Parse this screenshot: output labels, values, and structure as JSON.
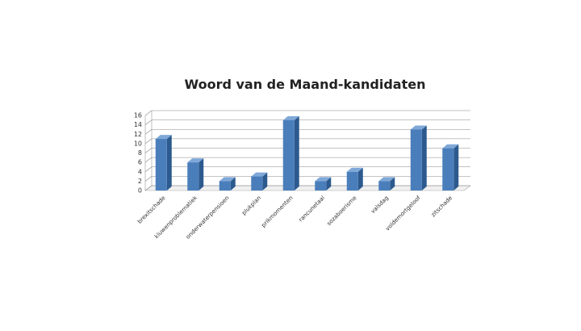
{
  "chart_data": {
    "type": "bar",
    "title": "Woord van de Maand-kandidaten",
    "categories": [
      "brexitschade",
      "kluwenproblematiek",
      "onderwaterpensioen",
      "plukplan",
      "prikmomenten",
      "rancunetaal",
      "sozaboerisme",
      "valsdag",
      "voldemortgeloof",
      "zitschade"
    ],
    "values": [
      11,
      6,
      2,
      3,
      15,
      2,
      4,
      2,
      13,
      9
    ],
    "color": "#4a7ebb",
    "ylim": [
      0,
      16
    ],
    "yticks": [
      0,
      2,
      4,
      6,
      8,
      10,
      12,
      14,
      16
    ],
    "grid": true
  }
}
